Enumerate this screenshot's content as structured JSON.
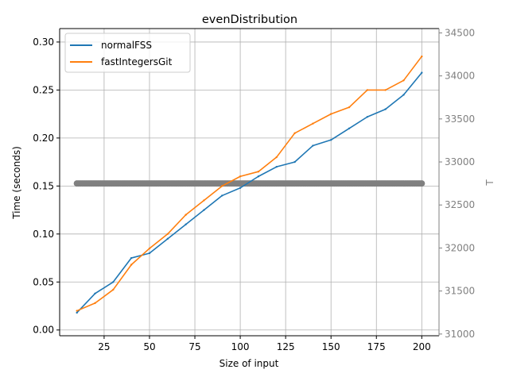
{
  "chart_data": {
    "type": "line",
    "title": "evenDistribution",
    "xlabel": "Size of input",
    "ylabel": "Time (seconds)",
    "ylabel_right": "T",
    "xlim": [
      0.5,
      209.5
    ],
    "ylim": [
      -0.006,
      0.314
    ],
    "ylim_right": [
      30980,
      34550
    ],
    "x_ticks": [
      25,
      50,
      75,
      100,
      125,
      150,
      175,
      200
    ],
    "y_ticks": [
      0.0,
      0.05,
      0.1,
      0.15,
      0.2,
      0.25,
      0.3
    ],
    "y_tick_labels": [
      "0.00",
      "0.05",
      "0.10",
      "0.15",
      "0.20",
      "0.25",
      "0.30"
    ],
    "y_right_ticks": [
      31000,
      31500,
      32000,
      32500,
      33000,
      33500,
      34000,
      34500
    ],
    "grid": true,
    "legend_position": "top-left",
    "colors": {
      "normalFSS": "#1f77b4",
      "fastIntegersGit": "#ff7f0e",
      "T": "#808080",
      "right_axis": "#808080"
    },
    "x": [
      10,
      20,
      30,
      40,
      50,
      60,
      70,
      80,
      90,
      100,
      110,
      120,
      130,
      140,
      150,
      160,
      170,
      180,
      190,
      200
    ],
    "series": [
      {
        "name": "normalFSS",
        "axis": "left",
        "values": [
          0.018,
          0.038,
          0.05,
          0.075,
          0.08,
          0.095,
          0.11,
          0.125,
          0.14,
          0.148,
          0.16,
          0.17,
          0.175,
          0.192,
          0.198,
          0.21,
          0.222,
          0.23,
          0.245,
          0.268
        ]
      },
      {
        "name": "fastIntegersGit",
        "axis": "left",
        "values": [
          0.02,
          0.028,
          0.042,
          0.068,
          0.085,
          0.1,
          0.12,
          0.135,
          0.15,
          0.16,
          0.165,
          0.18,
          0.205,
          0.215,
          0.225,
          0.232,
          0.25,
          0.25,
          0.26,
          0.285
        ]
      },
      {
        "name": "T",
        "axis": "right",
        "marker": "circle",
        "constant": 32750,
        "x_range": [
          10,
          200
        ]
      }
    ]
  }
}
